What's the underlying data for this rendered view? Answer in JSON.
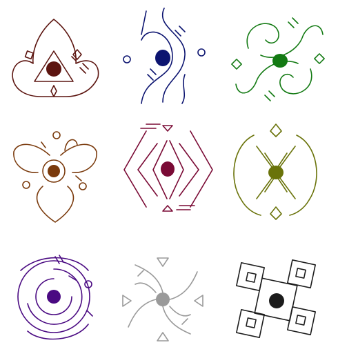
{
  "symbols": [
    {
      "name": "trefoil-triangle",
      "color": "#5c1510"
    },
    {
      "name": "wave-eye",
      "color": "#0c1470"
    },
    {
      "name": "twin-scroll",
      "color": "#137a13"
    },
    {
      "name": "leaf-rosette",
      "color": "#7a3a0c"
    },
    {
      "name": "bracket-diamond",
      "color": "#7a0a35"
    },
    {
      "name": "arc-hourglass",
      "color": "#6a730a"
    },
    {
      "name": "ring-vortex",
      "color": "#4a0a82"
    },
    {
      "name": "pinwheel",
      "color": "#9a9a9a"
    },
    {
      "name": "square-knot",
      "color": "#1c1c1c"
    }
  ]
}
